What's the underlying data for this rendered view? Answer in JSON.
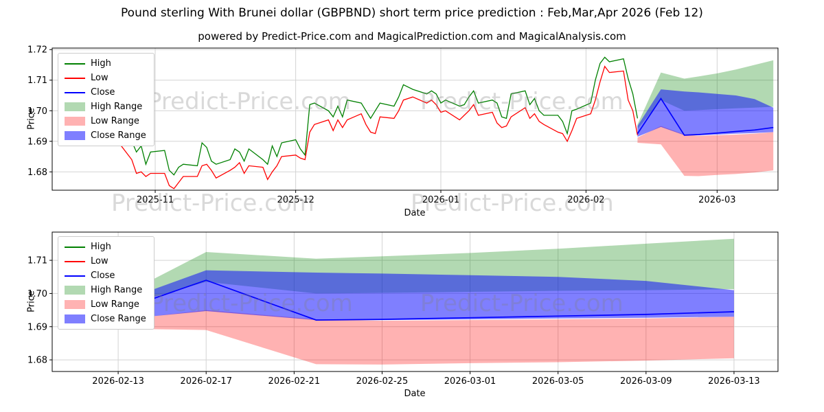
{
  "chart_data": {
    "type": "line",
    "title": "Pound sterling With Brunei dollar (GBPBND) short term price prediction : Feb,Mar,Apr 2026 (Feb 12)",
    "subtitle": "powered by Predict-Price.com and MagicalPrediction.com and MagicalAnalysis.com",
    "watermark": "Predict-Price.com",
    "legend": [
      "High",
      "Low",
      "Close",
      "High Range",
      "Low Range",
      "Close Range"
    ],
    "colors": {
      "high": "#008000",
      "low": "#ff0000",
      "close": "#0000ff",
      "high_range": "rgba(0,128,0,0.30)",
      "low_range": "rgba(255,0,0,0.30)",
      "close_range": "rgba(0,0,255,0.50)",
      "grid": "#d3d3d3",
      "spine": "#000000"
    },
    "charts": [
      {
        "name": "history_with_forecast",
        "xlabel": "Date",
        "ylabel": "Price",
        "grid": true,
        "legend_loc": "upper left",
        "x_domain": [
          "2025-10-10",
          "2026-03-14"
        ],
        "ylim": [
          1.674,
          1.7205
        ],
        "yticks": [
          1.68,
          1.69,
          1.7,
          1.71,
          1.72
        ],
        "xticks": [
          {
            "date": "2025-11-01",
            "label": "2025-11"
          },
          {
            "date": "2025-12-01",
            "label": "2025-12"
          },
          {
            "date": "2026-01-01",
            "label": "2026-01"
          },
          {
            "date": "2026-02-01",
            "label": "2026-02"
          },
          {
            "date": "2026-03-01",
            "label": "2026-03"
          }
        ]
      },
      {
        "name": "forecast_zoom",
        "xlabel": "Date",
        "ylabel": "Price",
        "grid": true,
        "legend_loc": "upper left",
        "x_domain": [
          "2026-02-10",
          "2026-03-15"
        ],
        "ylim": [
          1.6765,
          1.7185
        ],
        "yticks": [
          1.68,
          1.69,
          1.7,
          1.71
        ],
        "xticks": [
          {
            "date": "2026-02-13",
            "label": "2026-02-13"
          },
          {
            "date": "2026-02-17",
            "label": "2026-02-17"
          },
          {
            "date": "2026-02-21",
            "label": "2026-02-21"
          },
          {
            "date": "2026-02-25",
            "label": "2026-02-25"
          },
          {
            "date": "2026-03-01",
            "label": "2026-03-01"
          },
          {
            "date": "2026-03-05",
            "label": "2026-03-05"
          },
          {
            "date": "2026-03-09",
            "label": "2026-03-09"
          },
          {
            "date": "2026-03-13",
            "label": "2026-03-13"
          }
        ]
      }
    ],
    "historical": {
      "dates": [
        "2025-10-22",
        "2025-10-23",
        "2025-10-24",
        "2025-10-27",
        "2025-10-28",
        "2025-10-29",
        "2025-10-30",
        "2025-10-31",
        "2025-11-03",
        "2025-11-04",
        "2025-11-05",
        "2025-11-06",
        "2025-11-07",
        "2025-11-10",
        "2025-11-11",
        "2025-11-12",
        "2025-11-13",
        "2025-11-14",
        "2025-11-17",
        "2025-11-18",
        "2025-11-19",
        "2025-11-20",
        "2025-11-21",
        "2025-11-24",
        "2025-11-25",
        "2025-11-26",
        "2025-11-27",
        "2025-11-28",
        "2025-12-01",
        "2025-12-02",
        "2025-12-03",
        "2025-12-04",
        "2025-12-05",
        "2025-12-08",
        "2025-12-09",
        "2025-12-10",
        "2025-12-11",
        "2025-12-12",
        "2025-12-15",
        "2025-12-16",
        "2025-12-17",
        "2025-12-18",
        "2025-12-19",
        "2025-12-22",
        "2025-12-23",
        "2025-12-24",
        "2025-12-26",
        "2025-12-29",
        "2025-12-30",
        "2025-12-31",
        "2026-01-01",
        "2026-01-02",
        "2026-01-05",
        "2026-01-06",
        "2026-01-07",
        "2026-01-08",
        "2026-01-09",
        "2026-01-12",
        "2026-01-13",
        "2026-01-14",
        "2026-01-15",
        "2026-01-16",
        "2026-01-19",
        "2026-01-20",
        "2026-01-21",
        "2026-01-22",
        "2026-01-23",
        "2026-01-26",
        "2026-01-27",
        "2026-01-28",
        "2026-01-29",
        "2026-01-30",
        "2026-02-02",
        "2026-02-03",
        "2026-02-04",
        "2026-02-05",
        "2026-02-06",
        "2026-02-09",
        "2026-02-10",
        "2026-02-11",
        "2026-02-12"
      ],
      "high": [
        1.713,
        1.705,
        1.697,
        1.69,
        1.6865,
        1.6885,
        1.6825,
        1.6865,
        1.687,
        1.6805,
        1.679,
        1.6815,
        1.6825,
        1.682,
        1.6895,
        1.688,
        1.6835,
        1.6825,
        1.684,
        1.6875,
        1.6865,
        1.6835,
        1.6875,
        1.684,
        1.6825,
        1.6885,
        1.685,
        1.6895,
        1.6905,
        1.6875,
        1.6855,
        1.702,
        1.7025,
        1.7,
        1.698,
        1.7015,
        1.698,
        1.7035,
        1.7025,
        1.7,
        1.6975,
        1.7,
        1.7025,
        1.7015,
        1.7045,
        1.7085,
        1.707,
        1.7055,
        1.7065,
        1.7055,
        1.7025,
        1.7035,
        1.7015,
        1.702,
        1.7045,
        1.7065,
        1.7025,
        1.7035,
        1.7025,
        1.698,
        1.6975,
        1.7055,
        1.7065,
        1.702,
        1.704,
        1.7,
        1.6985,
        1.6985,
        1.6965,
        1.6925,
        1.7,
        1.7005,
        1.7025,
        1.71,
        1.7155,
        1.7175,
        1.716,
        1.717,
        1.7105,
        1.7055,
        1.6975
      ],
      "low": [
        1.7105,
        1.697,
        1.69,
        1.684,
        1.6795,
        1.68,
        1.6785,
        1.6795,
        1.6795,
        1.6755,
        1.6745,
        1.6765,
        1.6785,
        1.6785,
        1.682,
        1.6825,
        1.6805,
        1.678,
        1.6805,
        1.6815,
        1.683,
        1.6795,
        1.682,
        1.6815,
        1.6775,
        1.68,
        1.682,
        1.685,
        1.6855,
        1.6845,
        1.684,
        1.693,
        1.6955,
        1.697,
        1.6935,
        1.697,
        1.6945,
        1.697,
        1.699,
        1.6955,
        1.693,
        1.6925,
        1.698,
        1.6975,
        1.7,
        1.7035,
        1.7045,
        1.7025,
        1.7035,
        1.702,
        1.6995,
        1.7,
        1.697,
        1.6985,
        1.7,
        1.702,
        1.6985,
        1.6995,
        1.696,
        1.6945,
        1.695,
        1.698,
        1.701,
        1.6975,
        1.699,
        1.6965,
        1.6955,
        1.693,
        1.6925,
        1.69,
        1.6935,
        1.6975,
        1.699,
        1.7035,
        1.7095,
        1.7145,
        1.7125,
        1.713,
        1.7035,
        1.7,
        1.692
      ]
    },
    "forecast": {
      "dates": [
        "2026-02-12",
        "2026-02-17",
        "2026-02-22",
        "2026-02-25",
        "2026-03-01",
        "2026-03-05",
        "2026-03-09",
        "2026-03-13"
      ],
      "close": [
        1.6925,
        1.704,
        1.692,
        1.6922,
        1.6927,
        1.6932,
        1.6937,
        1.6945
      ],
      "high_range_upper": [
        1.6955,
        1.7125,
        1.7105,
        1.7112,
        1.7122,
        1.7135,
        1.715,
        1.7165
      ],
      "high_range_lower": [
        1.694,
        1.7035,
        1.7,
        1.7002,
        1.7005,
        1.7008,
        1.701,
        1.7013
      ],
      "close_range_upper": [
        1.695,
        1.707,
        1.7063,
        1.706,
        1.7055,
        1.705,
        1.7038,
        1.701
      ],
      "close_range_lower": [
        1.6915,
        1.6947,
        1.692,
        1.692,
        1.6922,
        1.6925,
        1.6927,
        1.693
      ],
      "low_range_upper": [
        1.6912,
        1.695,
        1.6922,
        1.6918,
        1.692,
        1.6922,
        1.6925,
        1.693
      ],
      "low_range_lower": [
        1.6895,
        1.689,
        1.6787,
        1.6786,
        1.679,
        1.6793,
        1.6798,
        1.6805
      ]
    }
  }
}
